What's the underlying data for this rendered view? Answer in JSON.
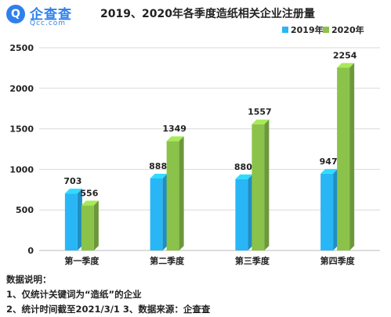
{
  "logo": {
    "icon": "magnifier-logo-icon",
    "mark": "Q",
    "name": "企查查",
    "domain": "Qcc.com"
  },
  "colors": {
    "brand": "#2f80ed",
    "series2019": "#29b6f6",
    "series2020": "#8bc34a"
  },
  "chart_data": {
    "type": "bar",
    "title": "2019、2020年各季度造纸相关企业注册量",
    "categories": [
      "第一季度",
      "第二季度",
      "第三季度",
      "第四季度"
    ],
    "series": [
      {
        "name": "2019年",
        "values": [
          703,
          888,
          880,
          947
        ],
        "color": "#29b6f6"
      },
      {
        "name": "2020年",
        "values": [
          556,
          1349,
          1557,
          2254
        ],
        "color": "#8bc34a"
      }
    ],
    "ylim": [
      0,
      2500
    ],
    "yticks": [
      0,
      500,
      1000,
      1500,
      2000,
      2500
    ],
    "xlabel": "",
    "ylabel": "",
    "grid": true,
    "legend": "top-right",
    "style": "3d-bars"
  },
  "notes": {
    "heading": "数据说明：",
    "line1": "1、仅统计关键词为“造纸”的企业",
    "line2": "2、统计时间截至2021/3/1  3、数据来源：企查查"
  }
}
